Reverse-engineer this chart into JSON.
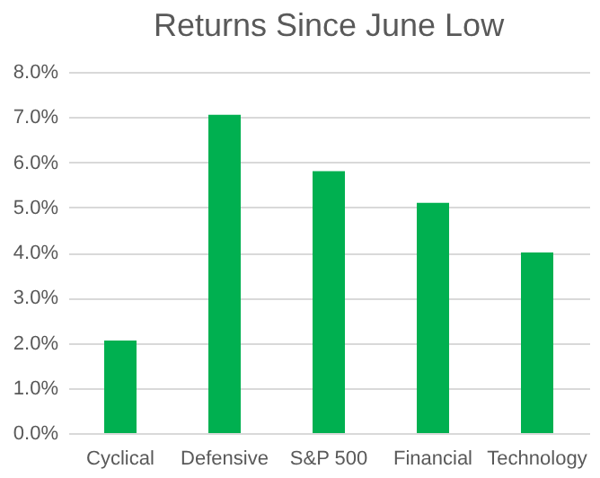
{
  "chart_data": {
    "type": "bar",
    "title": "Returns Since June Low",
    "categories": [
      "Cyclical",
      "Defensive",
      "S&P 500",
      "Financial",
      "Technology"
    ],
    "values": [
      2.05,
      7.05,
      5.8,
      5.1,
      4.0
    ],
    "color": "#00b050",
    "ylim": [
      0,
      8
    ],
    "yticks": [
      {
        "value": 0,
        "label": "0.0%"
      },
      {
        "value": 1,
        "label": "1.0%"
      },
      {
        "value": 2,
        "label": "2.0%"
      },
      {
        "value": 3,
        "label": "3.0%"
      },
      {
        "value": 4,
        "label": "4.0%"
      },
      {
        "value": 5,
        "label": "5.0%"
      },
      {
        "value": 6,
        "label": "6.0%"
      },
      {
        "value": 7,
        "label": "7.0%"
      },
      {
        "value": 8,
        "label": "8.0%"
      }
    ],
    "grid": "y"
  }
}
